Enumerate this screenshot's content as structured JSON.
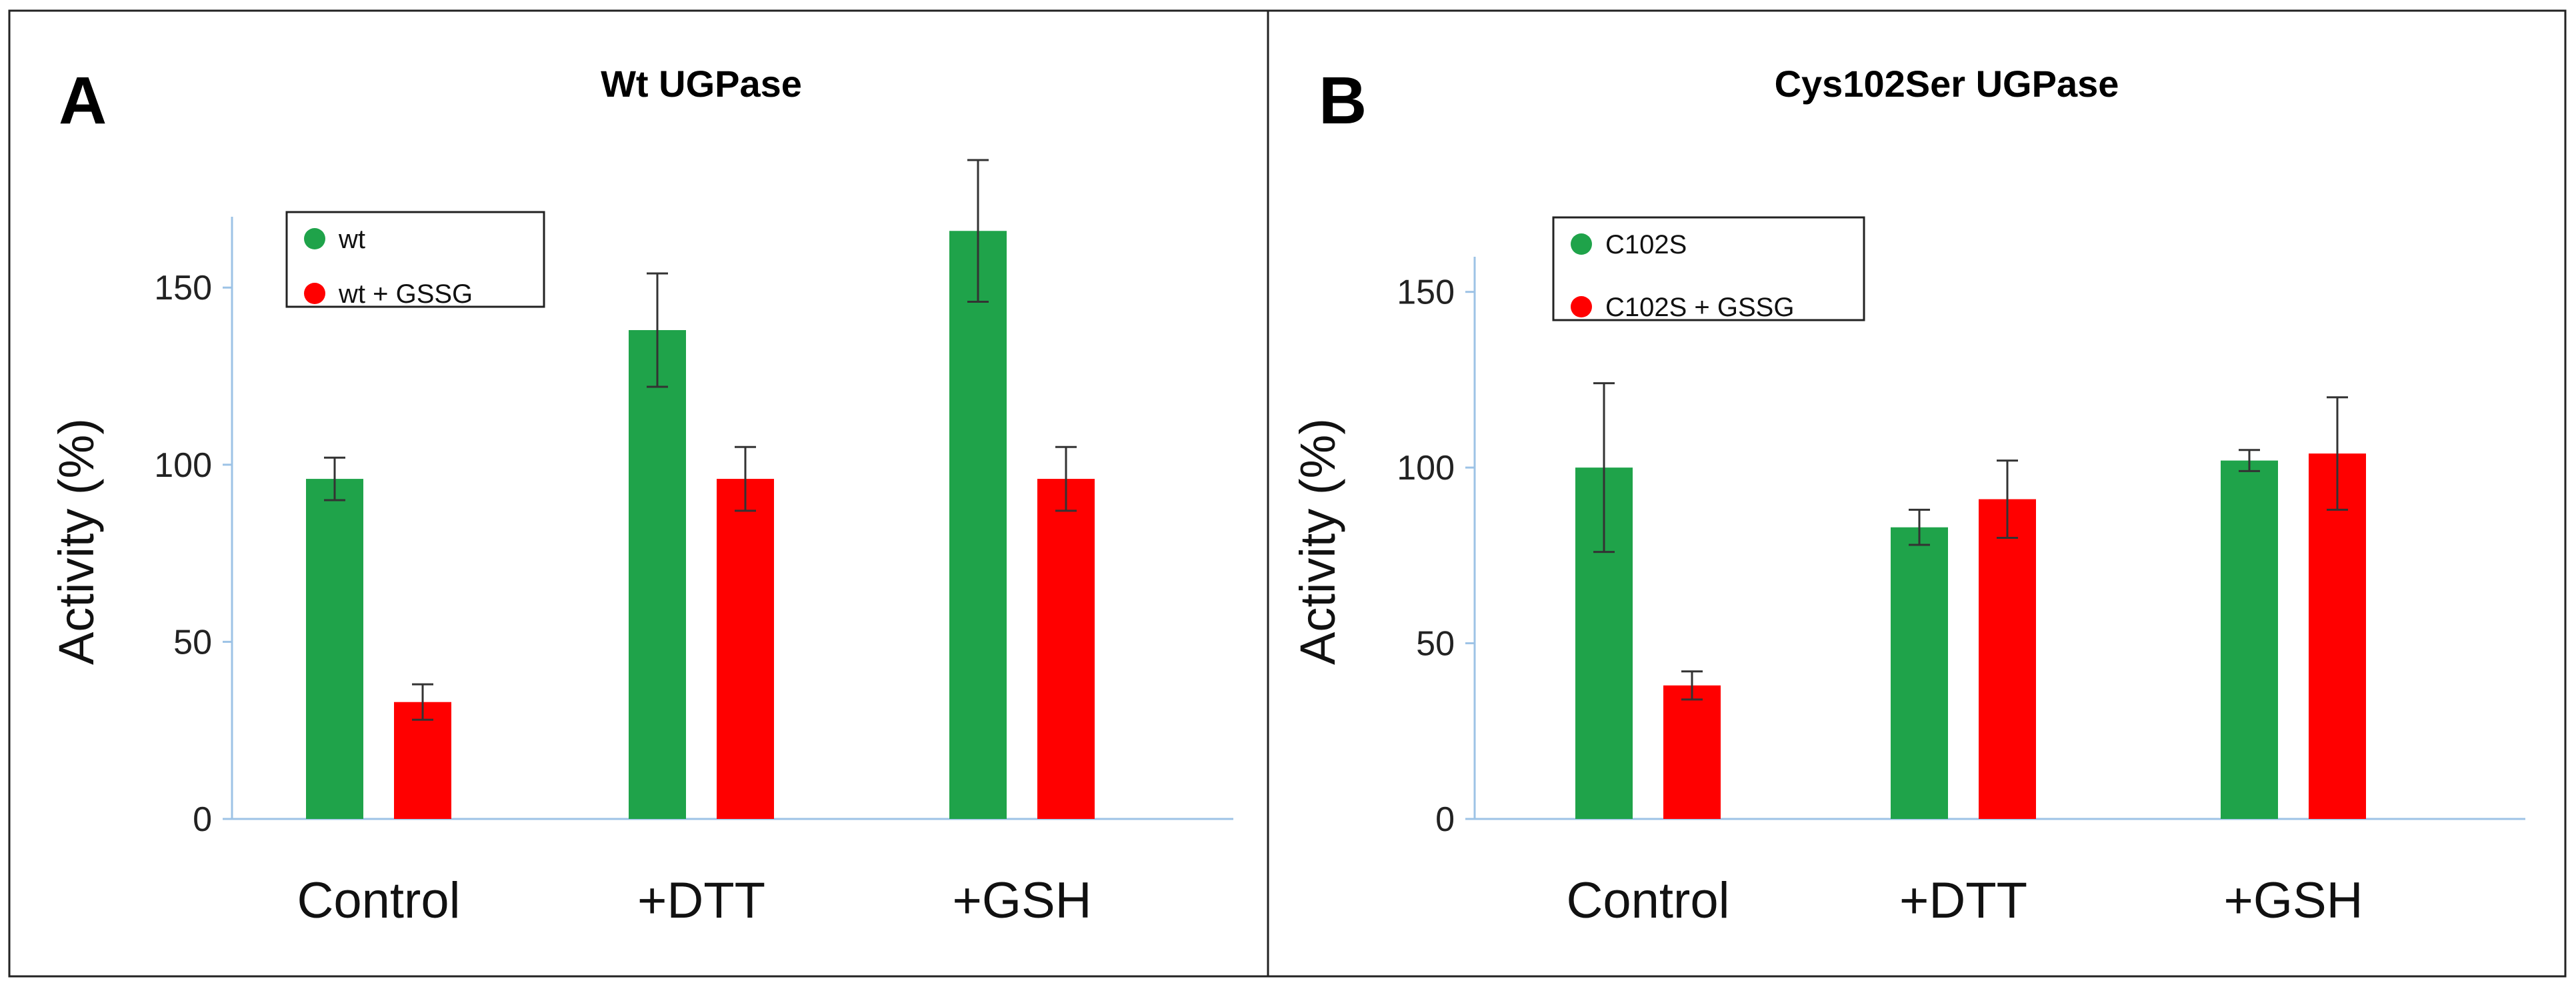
{
  "chart_data": [
    {
      "type": "bar",
      "panel_label": "A",
      "title": "Wt UGPase",
      "ylabel": "Activity (%)",
      "xlabel": "",
      "categories": [
        "Control",
        "+DTT",
        "+GSH"
      ],
      "ylim": [
        0,
        170
      ],
      "yticks": [
        0,
        50,
        100,
        150
      ],
      "grid": false,
      "legend_position": "top-left",
      "series": [
        {
          "name": "wt",
          "color": "#1fa34a",
          "values": [
            96,
            138,
            166
          ],
          "errors": [
            6,
            16,
            20
          ]
        },
        {
          "name": "wt + GSSG",
          "color": "#ff0000",
          "values": [
            33,
            96,
            96
          ],
          "errors": [
            5,
            9,
            9
          ]
        }
      ]
    },
    {
      "type": "bar",
      "panel_label": "B",
      "title": "Cys102Ser UGPase",
      "ylabel": "Activity (%)",
      "xlabel": "",
      "categories": [
        "Control",
        "+DTT",
        "+GSH"
      ],
      "ylim": [
        0,
        160
      ],
      "yticks": [
        0,
        50,
        100,
        150
      ],
      "grid": false,
      "legend_position": "top-left",
      "series": [
        {
          "name": "C102S",
          "color": "#1fa34a",
          "values": [
            100,
            83,
            102
          ],
          "errors": [
            24,
            5,
            3
          ]
        },
        {
          "name": "C102S + GSSG",
          "color": "#ff0000",
          "values": [
            38,
            91,
            104
          ],
          "errors": [
            4,
            11,
            16
          ]
        }
      ]
    }
  ]
}
